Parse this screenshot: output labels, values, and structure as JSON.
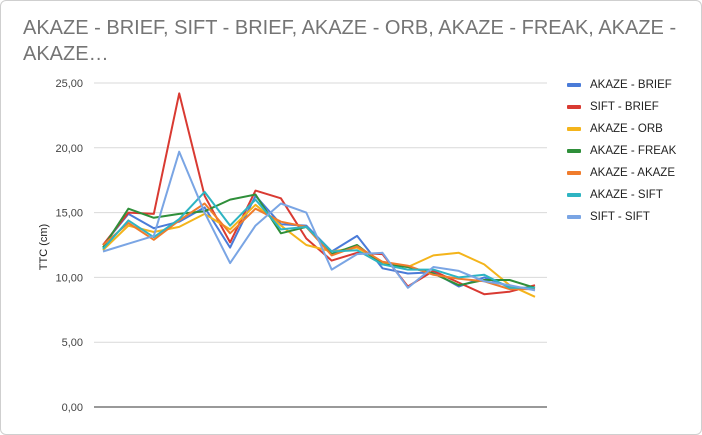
{
  "chart_data": {
    "type": "line",
    "title": "AKAZE - BRIEF, SIFT - BRIEF, AKAZE - ORB, AKAZE - FREAK, AKAZE - AKAZE…",
    "xlabel": "",
    "ylabel": "TTC (cm)",
    "ylim": [
      0,
      25
    ],
    "yticks": [
      "0,00",
      "5,00",
      "10,00",
      "15,00",
      "20,00",
      "25,00"
    ],
    "grid": true,
    "legend": "right",
    "x": [
      1,
      2,
      3,
      4,
      5,
      6,
      7,
      8,
      9,
      10,
      11,
      12,
      13,
      14,
      15,
      16,
      17,
      18
    ],
    "series": [
      {
        "name": "AKAZE - BRIEF",
        "color": "#4a7bd8",
        "values": [
          12.5,
          14.9,
          13.8,
          14.3,
          15.4,
          12.3,
          16.3,
          14.1,
          14.0,
          12.0,
          13.2,
          10.7,
          10.3,
          10.4,
          9.3,
          10.0,
          9.3,
          9.1
        ]
      },
      {
        "name": "SIFT - BRIEF",
        "color": "#d93a32",
        "values": [
          12.5,
          15.0,
          14.9,
          24.2,
          16.3,
          12.7,
          16.7,
          16.1,
          13.0,
          11.3,
          11.9,
          11.8,
          9.3,
          10.5,
          9.6,
          8.7,
          8.9,
          9.4
        ]
      },
      {
        "name": "AKAZE - ORB",
        "color": "#f4b41b",
        "values": [
          12.1,
          14.0,
          13.5,
          13.9,
          14.9,
          13.7,
          15.6,
          14.0,
          12.5,
          12.0,
          12.3,
          11.1,
          10.8,
          11.7,
          11.9,
          11.0,
          9.4,
          8.5
        ]
      },
      {
        "name": "AKAZE - FREAK",
        "color": "#2f8f3a",
        "values": [
          12.3,
          15.3,
          14.6,
          14.9,
          15.1,
          16.0,
          16.4,
          13.4,
          13.9,
          11.8,
          12.5,
          11.0,
          10.8,
          10.3,
          9.4,
          9.8,
          9.8,
          9.2
        ]
      },
      {
        "name": "AKAZE - AKAZE",
        "color": "#f07c2c",
        "values": [
          12.5,
          14.2,
          12.9,
          14.4,
          15.7,
          13.4,
          15.3,
          14.3,
          13.9,
          11.7,
          12.4,
          11.2,
          10.9,
          10.2,
          9.9,
          9.7,
          9.1,
          9.1
        ]
      },
      {
        "name": "AKAZE - SIFT",
        "color": "#2eb4c2",
        "values": [
          12.2,
          14.4,
          13.1,
          14.5,
          16.6,
          14.0,
          16.0,
          13.7,
          13.9,
          12.0,
          12.1,
          11.0,
          10.6,
          10.6,
          10.0,
          10.2,
          9.2,
          9.2
        ]
      },
      {
        "name": "SIFT - SIFT",
        "color": "#7aa5e4",
        "values": [
          12.0,
          12.6,
          13.2,
          19.7,
          15.0,
          11.1,
          14.0,
          15.7,
          15.0,
          10.6,
          11.8,
          11.9,
          9.2,
          10.8,
          10.5,
          9.7,
          9.4,
          9.0
        ]
      }
    ]
  }
}
